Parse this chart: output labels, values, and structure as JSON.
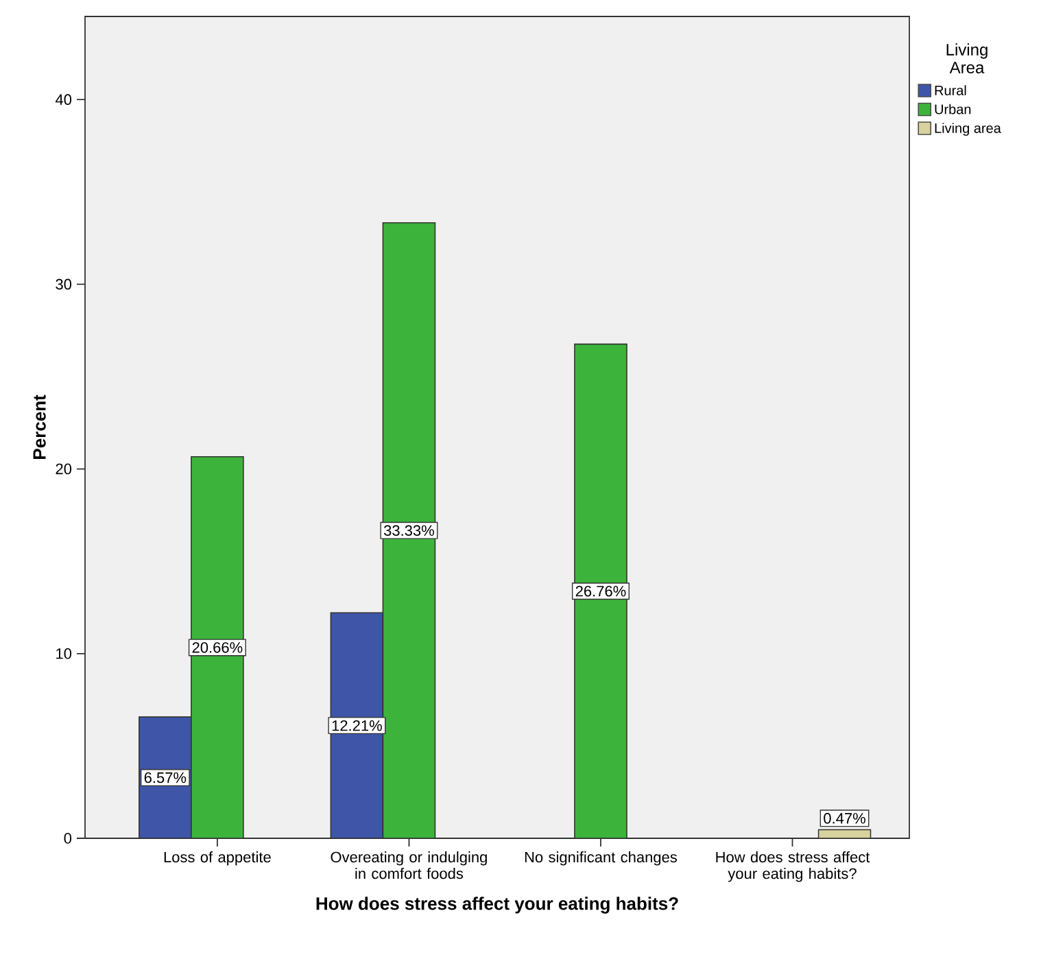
{
  "chart_data": {
    "type": "bar",
    "xlabel": "How does stress affect your eating habits?",
    "ylabel": "Percent",
    "legend_title": "Living Area",
    "legend": "top right",
    "categories": [
      "Loss of appetite",
      "Overeating or indulging in comfort foods",
      "No significant changes",
      "How does stress affect your eating habits?"
    ],
    "ylim": [
      0,
      44.5
    ],
    "yticks": [
      0,
      10,
      20,
      30,
      40
    ],
    "series": [
      {
        "name": "Rural",
        "color": "#3e55a8",
        "values": [
          6.57,
          12.21,
          null,
          null
        ],
        "value_labels": [
          "6.57%",
          "12.21%",
          null,
          null
        ]
      },
      {
        "name": "Urban",
        "color": "#3cb43c",
        "values": [
          20.66,
          33.33,
          26.76,
          null
        ],
        "value_labels": [
          "20.66%",
          "33.33%",
          "26.76%",
          null
        ]
      },
      {
        "name": "Living area",
        "color": "#d8d29e",
        "values": [
          null,
          null,
          null,
          0.47
        ],
        "value_labels": [
          null,
          null,
          null,
          "0.47%"
        ]
      }
    ]
  }
}
